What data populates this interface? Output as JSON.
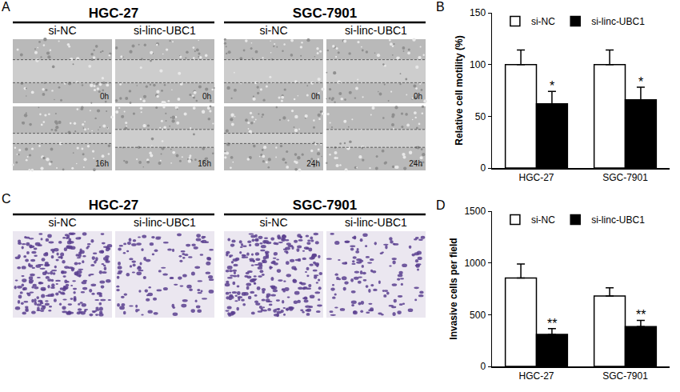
{
  "image_panels": [
    {
      "panel": "A",
      "groups": [
        "HGC-27",
        "SGC-7901"
      ],
      "columns": [
        "si-NC",
        "si-linc-UBC1",
        "si-NC",
        "si-linc-UBC1"
      ],
      "time_labels": [
        [
          "0h",
          "0h",
          "0h",
          "0h"
        ],
        [
          "16h",
          "16h",
          "24h",
          "24h"
        ]
      ]
    },
    {
      "panel": "C",
      "groups": [
        "HGC-27",
        "SGC-7901"
      ],
      "columns": [
        "si-NC",
        "si-linc-UBC1",
        "si-NC",
        "si-linc-UBC1"
      ]
    }
  ],
  "chart_data": [
    {
      "panel": "B",
      "type": "bar",
      "categories": [
        "HGC-27",
        "SGC-7901"
      ],
      "ylabel": "Relative cell motility (%)",
      "ylim": [
        0,
        150
      ],
      "yticks": [
        0,
        50,
        100,
        150
      ],
      "grid": false,
      "legend": "top",
      "series": [
        {
          "name": "si-NC",
          "color": "#ffffff",
          "values": [
            100,
            100
          ],
          "errors": [
            14,
            14
          ]
        },
        {
          "name": "si-linc-UBC1",
          "color": "#000000",
          "values": [
            62,
            66
          ],
          "errors": [
            12,
            12
          ],
          "annotations": [
            "*",
            "*"
          ]
        }
      ]
    },
    {
      "panel": "D",
      "type": "bar",
      "categories": [
        "HGC-27",
        "SGC-7901"
      ],
      "ylabel": "Invasive cells per field",
      "ylim": [
        0,
        1500
      ],
      "yticks": [
        0,
        500,
        1000,
        1500
      ],
      "grid": false,
      "legend": "top",
      "series": [
        {
          "name": "si-NC",
          "color": "#ffffff",
          "values": [
            855,
            680
          ],
          "errors": [
            135,
            80
          ]
        },
        {
          "name": "si-linc-UBC1",
          "color": "#000000",
          "values": [
            310,
            385
          ],
          "errors": [
            55,
            60
          ],
          "annotations": [
            "**",
            "**"
          ]
        }
      ]
    }
  ]
}
